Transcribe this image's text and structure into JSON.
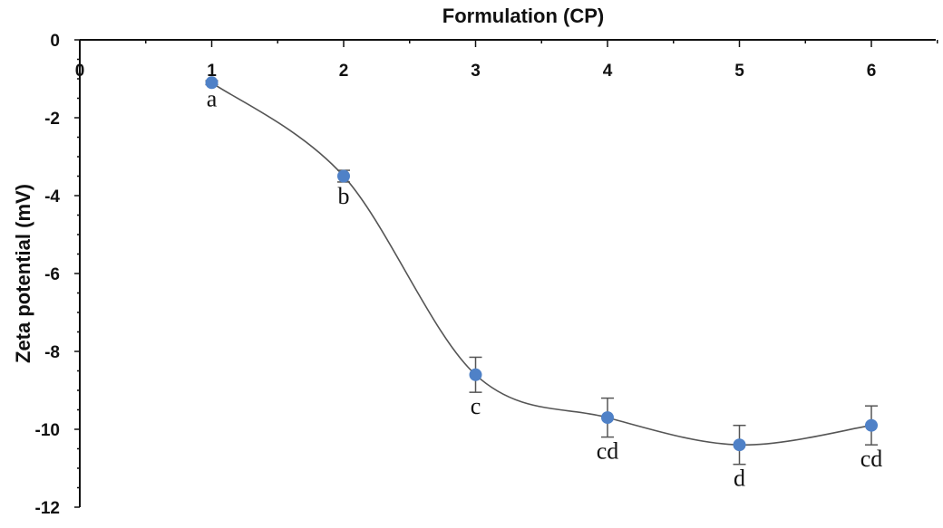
{
  "chart_data": {
    "type": "scatter",
    "title": "",
    "xlabel": "Formulation (CP)",
    "ylabel": "Zeta potential (mV)",
    "x_axis_position": "top",
    "xlim": [
      0,
      6.5
    ],
    "ylim": [
      -12,
      0
    ],
    "xticks": [
      "0",
      "1",
      "2",
      "3",
      "4",
      "5",
      "6"
    ],
    "yticks": [
      "0",
      "-2",
      "-4",
      "-6",
      "-8",
      "-10",
      "-12"
    ],
    "x_tick_values": [
      0,
      1,
      2,
      3,
      4,
      5,
      6
    ],
    "y_tick_values": [
      0,
      -2,
      -4,
      -6,
      -8,
      -10,
      -12
    ],
    "grid": false,
    "smoothed_line": true,
    "marker_color": "#4f81c7",
    "line_color": "#555555",
    "series": [
      {
        "x": [
          1,
          2,
          3,
          4,
          5,
          6
        ],
        "y": [
          -1.1,
          -3.5,
          -8.6,
          -9.7,
          -10.4,
          -9.9
        ],
        "error": [
          0.05,
          0.15,
          0.45,
          0.5,
          0.5,
          0.5
        ],
        "labels": [
          "a",
          "b",
          "c",
          "cd",
          "d",
          "cd"
        ]
      }
    ]
  }
}
